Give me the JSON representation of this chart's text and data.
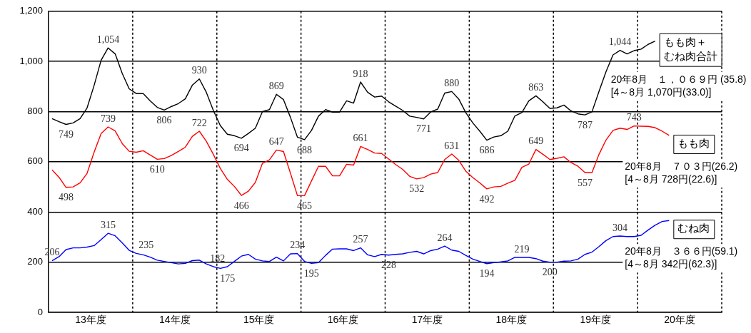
{
  "chart_data": {
    "type": "line",
    "x": [
      13.042,
      13.125,
      13.208,
      13.292,
      13.375,
      13.458,
      13.542,
      13.625,
      13.708,
      13.792,
      13.875,
      13.958,
      14.042,
      14.125,
      14.208,
      14.292,
      14.375,
      14.458,
      14.542,
      14.625,
      14.708,
      14.792,
      14.875,
      14.958,
      15.042,
      15.125,
      15.208,
      15.292,
      15.375,
      15.458,
      15.542,
      15.625,
      15.708,
      15.792,
      15.875,
      15.958,
      16.042,
      16.125,
      16.208,
      16.292,
      16.375,
      16.458,
      16.542,
      16.625,
      16.708,
      16.792,
      16.875,
      16.958,
      17.042,
      17.125,
      17.208,
      17.292,
      17.375,
      17.458,
      17.542,
      17.625,
      17.708,
      17.792,
      17.875,
      17.958,
      18.042,
      18.125,
      18.208,
      18.292,
      18.375,
      18.458,
      18.542,
      18.625,
      18.708,
      18.792,
      18.875,
      18.958,
      19.042,
      19.125,
      19.208,
      19.292,
      19.375,
      19.458,
      19.542,
      19.625,
      19.708,
      19.792,
      19.875,
      19.958,
      20.042,
      20.125,
      20.208,
      20.292,
      20.375
    ],
    "xlim": [
      13,
      21
    ],
    "xticks": [
      {
        "value": 13.5,
        "label": "13年度"
      },
      {
        "value": 14.5,
        "label": "14年度"
      },
      {
        "value": 15.5,
        "label": "15年度"
      },
      {
        "value": 16.5,
        "label": "16年度"
      },
      {
        "value": 17.5,
        "label": "17年度"
      },
      {
        "value": 18.5,
        "label": "18年度"
      },
      {
        "value": 19.5,
        "label": "19年度"
      },
      {
        "value": 20.5,
        "label": "20年度"
      }
    ],
    "ylim": [
      0,
      1200
    ],
    "yticks": [
      0,
      {
        "value": 200,
        "label": "200"
      },
      400,
      600,
      800,
      {
        "value": 1000,
        "label": "1,000"
      },
      {
        "value": 1200,
        "label": "1,200"
      }
    ],
    "grid": "y",
    "legend": false,
    "marker": "none",
    "line_style": "solid",
    "series": [
      {
        "name": "もも肉＋むね肉合計",
        "color": "#000000",
        "values": [
          772,
          760,
          749,
          755,
          772,
          815,
          905,
          1005,
          1054,
          1030,
          953,
          891,
          872,
          872,
          843,
          817,
          806,
          820,
          832,
          851,
          905,
          930,
          877,
          805,
          744,
          710,
          704,
          694,
          713,
          734,
          800,
          808,
          869,
          848,
          777,
          698,
          688,
          725,
          782,
          808,
          798,
          798,
          843,
          834,
          918,
          877,
          858,
          862,
          839,
          822,
          805,
          782,
          777,
          771,
          799,
          810,
          874,
          880,
          850,
          796,
          755,
          722,
          686,
          699,
          704,
          722,
          783,
          796,
          843,
          863,
          839,
          813,
          815,
          826,
          803,
          791,
          787,
          799,
          881,
          959,
          1026,
          1044,
          1030,
          1043,
          1049,
          1068,
          1081,
          null,
          null
        ],
        "value_labels": [
          null,
          null,
          "749",
          null,
          null,
          null,
          null,
          null,
          "1,054",
          null,
          null,
          null,
          null,
          null,
          null,
          null,
          "806",
          null,
          null,
          null,
          null,
          "930",
          null,
          null,
          null,
          null,
          null,
          "694",
          null,
          null,
          null,
          null,
          "869",
          null,
          null,
          null,
          "688",
          null,
          null,
          null,
          null,
          null,
          null,
          null,
          "918",
          null,
          null,
          null,
          null,
          null,
          null,
          null,
          null,
          "771",
          null,
          null,
          null,
          "880",
          null,
          null,
          null,
          null,
          "686",
          null,
          null,
          null,
          null,
          null,
          null,
          "863",
          null,
          null,
          null,
          null,
          null,
          null,
          "787",
          null,
          null,
          null,
          null,
          "1,044",
          null,
          null,
          null,
          null,
          null,
          null,
          null
        ]
      },
      {
        "name": "もも肉",
        "color": "#ff0000",
        "values": [
          568,
          538,
          498,
          500,
          516,
          554,
          639,
          713,
          739,
          723,
          673,
          642,
          638,
          644,
          627,
          610,
          613,
          625,
          641,
          658,
          701,
          722,
          682,
          630,
          573,
          530,
          502,
          466,
          483,
          518,
          594,
          608,
          647,
          641,
          554,
          465,
          465,
          524,
          582,
          582,
          544,
          544,
          590,
          587,
          661,
          649,
          635,
          633,
          611,
          589,
          570,
          542,
          532,
          537,
          551,
          557,
          609,
          631,
          606,
          563,
          537,
          516,
          492,
          500,
          502,
          515,
          526,
          578,
          591,
          649,
          630,
          609,
          614,
          620,
          597,
          582,
          557,
          557,
          630,
          687,
          725,
          734,
          729,
          743,
          742,
          741,
          736,
          722,
          705
        ],
        "value_labels": [
          null,
          null,
          "498",
          null,
          null,
          null,
          null,
          null,
          "739",
          null,
          null,
          null,
          null,
          null,
          null,
          "610",
          null,
          null,
          null,
          null,
          null,
          "722",
          null,
          null,
          null,
          null,
          null,
          "466",
          null,
          null,
          null,
          null,
          "647",
          null,
          null,
          null,
          "465",
          null,
          null,
          null,
          null,
          null,
          null,
          null,
          "661",
          null,
          null,
          null,
          null,
          null,
          null,
          null,
          "532",
          null,
          null,
          null,
          null,
          "631",
          null,
          null,
          null,
          null,
          "492",
          null,
          null,
          null,
          null,
          null,
          null,
          "649",
          null,
          null,
          null,
          null,
          null,
          null,
          "557",
          null,
          null,
          null,
          null,
          null,
          null,
          "743",
          null,
          null,
          null,
          null,
          null
        ]
      },
      {
        "name": "むね肉",
        "color": "#0000ff",
        "values": [
          206,
          222,
          250,
          257,
          257,
          260,
          266,
          290,
          315,
          305,
          277,
          247,
          235,
          229,
          220,
          208,
          203,
          198,
          193,
          195,
          206,
          208,
          193,
          182,
          175,
          182,
          203,
          224,
          231,
          212,
          205,
          203,
          220,
          205,
          233,
          234,
          203,
          195,
          198,
          227,
          252,
          253,
          253,
          246,
          257,
          229,
          222,
          231,
          228,
          231,
          233,
          239,
          243,
          233,
          246,
          252,
          264,
          248,
          243,
          227,
          212,
          203,
          194,
          198,
          201,
          205,
          219,
          219,
          219,
          214,
          204,
          200,
          200,
          204,
          205,
          212,
          231,
          240,
          262,
          286,
          302,
          304,
          302,
          302,
          307,
          328,
          347,
          362,
          366
        ],
        "value_labels": [
          "206",
          null,
          null,
          null,
          null,
          null,
          null,
          null,
          "315",
          null,
          null,
          null,
          "235",
          null,
          null,
          null,
          null,
          null,
          null,
          null,
          null,
          null,
          null,
          "182",
          "175",
          null,
          null,
          null,
          null,
          null,
          null,
          null,
          null,
          null,
          null,
          "234",
          null,
          "195",
          null,
          null,
          null,
          null,
          null,
          null,
          "257",
          null,
          null,
          null,
          "228",
          null,
          null,
          null,
          null,
          null,
          null,
          null,
          "264",
          null,
          null,
          null,
          null,
          null,
          "194",
          null,
          null,
          null,
          null,
          "219",
          null,
          null,
          null,
          "200",
          null,
          null,
          null,
          null,
          null,
          null,
          null,
          null,
          null,
          "304",
          null,
          null,
          null,
          null,
          null,
          null,
          null
        ]
      }
    ],
    "ref_lines": [
      {
        "axis": "x",
        "value": 14,
        "color": "#000000",
        "line_style": "dotted"
      },
      {
        "axis": "x",
        "value": 15,
        "color": "#000000",
        "line_style": "dotted"
      },
      {
        "axis": "x",
        "value": 16,
        "color": "#000000",
        "line_style": "dotted"
      },
      {
        "axis": "x",
        "value": 17,
        "color": "#000000",
        "line_style": "dotted"
      },
      {
        "axis": "x",
        "value": 18,
        "color": "#000000",
        "line_style": "dotted"
      },
      {
        "axis": "x",
        "value": 19,
        "color": "#000000",
        "line_style": "dotted"
      },
      {
        "axis": "x",
        "value": 20,
        "color": "#000000",
        "line_style": "dotted"
      },
      {
        "axis": "x",
        "value": 21,
        "color": "#000000",
        "line_style": "dotted"
      }
    ],
    "annotations": [
      "20年8月　１，０６９円 (35.8)\n[4～8月 1,070円(33.0)]",
      "20年8月　７０３円(26.2)\n[4～8月 728円(22.6)]",
      "20年8月　３６６円(59.1)\n[4～8月 342円(62.3)]"
    ]
  }
}
